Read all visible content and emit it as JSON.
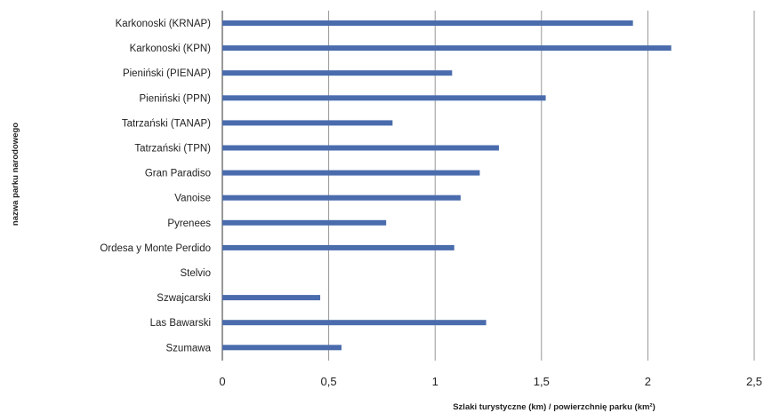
{
  "chart_data": {
    "type": "bar",
    "orientation": "horizontal",
    "categories": [
      "Karkonoski (KRNAP)",
      "Karkonoski (KPN)",
      "Pieniński (PIENAP)",
      "Pieniński (PPN)",
      "Tatrzański (TANAP)",
      "Tatrzański  (TPN)",
      "Gran Paradiso",
      "Vanoise",
      "Pyrenees",
      "Ordesa y Monte Perdido",
      "Stelvio",
      "Szwajcarski",
      "Las Bawarski",
      "Szumawa"
    ],
    "values": [
      1.93,
      2.11,
      1.08,
      1.52,
      0.8,
      1.3,
      1.21,
      1.12,
      0.77,
      1.09,
      0,
      0.46,
      1.24,
      0.56
    ],
    "xlim": [
      0,
      2.5
    ],
    "xticks": [
      0,
      0.5,
      1,
      1.5,
      2,
      2.5
    ],
    "xtick_labels": [
      "0",
      "0,5",
      "1",
      "1,5",
      "2",
      "2,5"
    ],
    "xlabel": "Szlaki turystyczne (km) / powierzchnię parku (km²)",
    "ylabel": "nazwa parku narodowego",
    "grid": "vertical",
    "bar_color": "#4a6cad",
    "grid_color": "#8c8c8c"
  }
}
